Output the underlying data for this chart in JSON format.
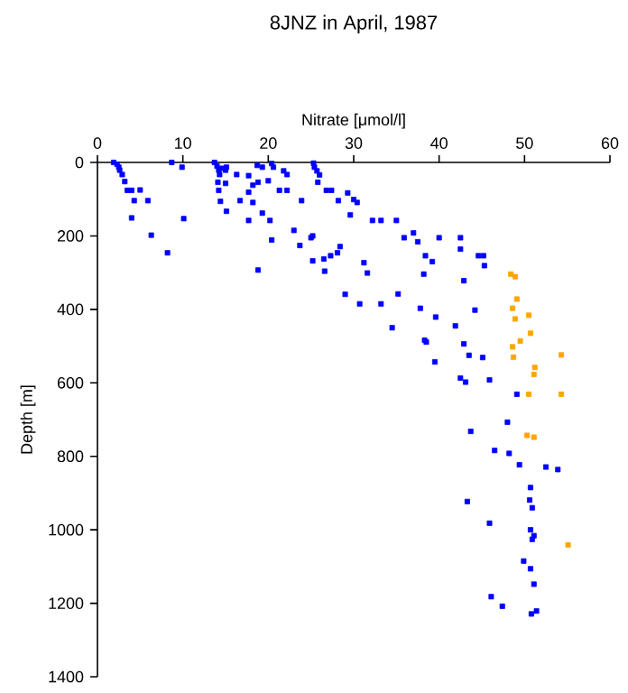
{
  "chart_data": {
    "type": "scatter",
    "title": "8JNZ in April, 1987",
    "xlabel": "Nitrate [μmol/l]",
    "ylabel": "Depth [m]",
    "xlim": [
      0,
      60
    ],
    "ylim": [
      1400,
      0
    ],
    "xticks": [
      0,
      10,
      20,
      30,
      40,
      50,
      60
    ],
    "yticks": [
      0,
      200,
      400,
      600,
      800,
      1000,
      1200,
      1400
    ],
    "marker": "square",
    "series": [
      {
        "color": "#0000ff",
        "x": [
          1.9,
          2.3,
          2.5,
          2.6,
          2.9,
          3.2,
          3.5,
          4.0,
          5.0,
          4.3,
          5.9,
          4.0,
          6.3,
          8.2,
          8.7,
          9.9,
          10.1,
          13.7,
          14.0,
          14.2,
          14.3,
          14.6,
          15.0,
          15.1,
          14.1,
          15.0,
          14.2,
          14.4,
          15.1,
          16.3,
          16.7,
          17.7,
          18.2,
          17.7,
          18.2,
          17.7,
          18.7,
          19.3,
          18.8,
          20.4,
          20.0,
          19.3,
          20.2,
          20.4,
          18.8,
          20.6,
          21.8,
          22.2,
          21.3,
          22.2,
          23.9,
          23.0,
          23.7,
          25.0,
          25.2,
          25.3,
          25.4,
          25.7,
          25.8,
          26.0,
          26.8,
          27.4,
          25.2,
          26.5,
          26.6,
          27.3,
          28.1,
          28.4,
          28.2,
          29.3,
          30.0,
          30.4,
          29.6,
          32.2,
          33.2,
          35.0,
          31.2,
          31.6,
          29.0,
          30.7,
          33.2,
          35.2,
          35.9,
          37.0,
          37.5,
          40.0,
          42.5,
          42.5,
          38.4,
          39.2,
          38.2,
          42.9,
          44.6,
          45.2,
          45.3,
          37.8,
          39.6,
          44.2,
          34.5,
          41.9,
          38.3,
          38.5,
          42.9,
          43.5,
          45.1,
          39.5,
          42.5,
          43.1,
          45.9,
          49.1,
          48.0,
          43.7,
          46.5,
          48.2,
          49.4,
          52.5,
          53.9,
          50.7,
          43.3,
          50.6,
          50.9,
          45.9,
          50.7,
          51.1,
          50.9,
          49.9,
          50.7,
          51.1,
          46.1,
          47.4,
          50.8,
          51.4
        ],
        "values": [
          0,
          5,
          13,
          21,
          33,
          52,
          76,
          76,
          75,
          104,
          104,
          151,
          198,
          246,
          0,
          13,
          153,
          0,
          10,
          21,
          33,
          16,
          21,
          13,
          54,
          57,
          76,
          106,
          133,
          33,
          104,
          36,
          62,
          81,
          109,
          158,
          8,
          13,
          54,
          3,
          50,
          138,
          158,
          211,
          293,
          13,
          23,
          33,
          76,
          76,
          104,
          185,
          226,
          205,
          200,
          2,
          13,
          23,
          54,
          34,
          76,
          76,
          268,
          263,
          296,
          254,
          246,
          229,
          104,
          83,
          101,
          109,
          143,
          158,
          158,
          158,
          273,
          301,
          359,
          385,
          385,
          358,
          205,
          192,
          216,
          205,
          205,
          236,
          254,
          270,
          304,
          322,
          254,
          254,
          281,
          397,
          421,
          402,
          450,
          445,
          484,
          489,
          494,
          525,
          531,
          543,
          587,
          598,
          592,
          631,
          707,
          732,
          784,
          792,
          823,
          829,
          836,
          885,
          923,
          919,
          940,
          982,
          1000,
          1016,
          1026,
          1085,
          1106,
          1148,
          1182,
          1208,
          1229,
          1221
        ]
      },
      {
        "color": "#ffa500",
        "x": [
          48.4,
          48.9,
          49.1,
          48.6,
          50.5,
          48.9,
          50.7,
          49.5,
          48.6,
          48.7,
          54.3,
          51.2,
          51.1,
          50.5,
          54.3,
          50.3,
          51.1,
          55.1
        ],
        "values": [
          304,
          311,
          372,
          397,
          416,
          426,
          465,
          486,
          502,
          530,
          524,
          558,
          577,
          631,
          631,
          743,
          748,
          1041
        ]
      }
    ]
  }
}
